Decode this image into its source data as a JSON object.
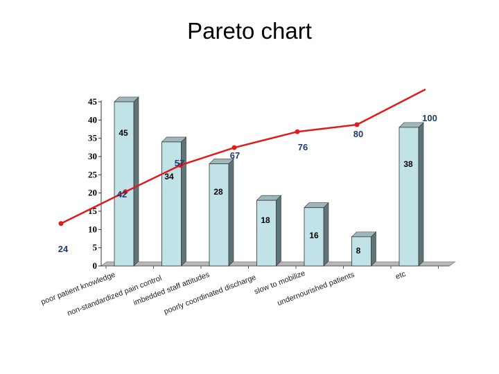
{
  "title": "Pareto chart",
  "chart_data": {
    "type": "bar",
    "title": "Pareto chart",
    "categories": [
      "poor patient knowledge",
      "non-standardized pain control",
      "imbedded staff attitudes",
      "poorly coordinated discharge",
      "slow to mobilize",
      "undernourished patients",
      "etc"
    ],
    "values": [
      45,
      34,
      28,
      18,
      16,
      8,
      38
    ],
    "bar_labels": [
      "45",
      "34",
      "28",
      "18",
      "16",
      "8",
      "38"
    ],
    "cumulative": [
      24,
      42,
      57,
      67,
      76,
      80,
      100
    ],
    "cumulative_labels": [
      "24",
      "42",
      "57",
      "67",
      "76",
      "80",
      "100"
    ],
    "yticks": [
      0,
      5,
      10,
      15,
      20,
      25,
      30,
      35,
      40,
      45
    ],
    "ylim": [
      0,
      45
    ],
    "xlabel": "",
    "ylabel": "",
    "grid": false,
    "legend": "none",
    "colors": {
      "bar": "#c1e3e8",
      "bar_top": "#9fb7bb",
      "bar_side": "#5e7478",
      "line": "#e01b1b",
      "cumulative_label": "#1f3b70"
    }
  }
}
